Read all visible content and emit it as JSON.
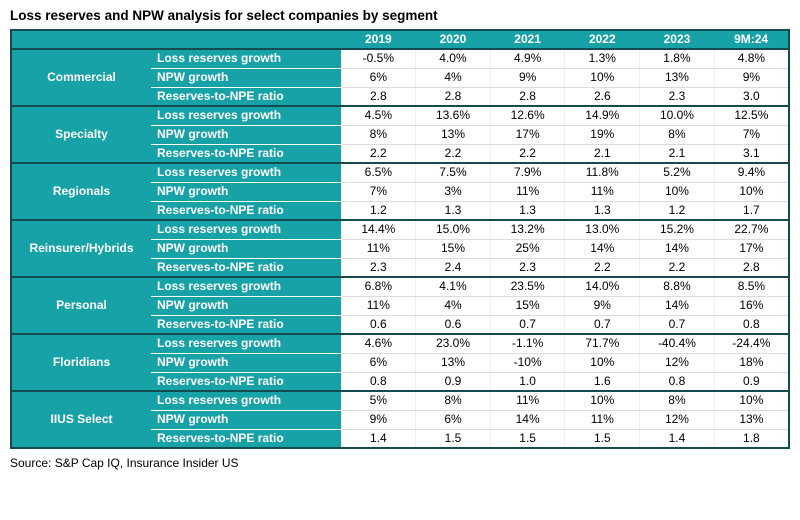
{
  "page": {
    "title": "Loss reserves and NPW analysis for select companies by segment",
    "source": "Source: S&P Cap IQ, Insurance Insider US"
  },
  "colors": {
    "teal": "#17a2a7",
    "dark_border": "#134b50",
    "header_text": "#ffffff",
    "row_line": "#dcdcdc"
  },
  "chart_data": {
    "type": "table",
    "title": "Loss reserves and NPW analysis for select companies by segment",
    "columns": [
      "2019",
      "2020",
      "2021",
      "2022",
      "2023",
      "9M:24"
    ],
    "metrics": [
      "Loss reserves growth",
      "NPW growth",
      "Reserves-to-NPE ratio"
    ],
    "segments": [
      {
        "name": "Commercial",
        "rows": [
          [
            "-0.5%",
            "4.0%",
            "4.9%",
            "1.3%",
            "1.8%",
            "4.8%"
          ],
          [
            "6%",
            "4%",
            "9%",
            "10%",
            "13%",
            "9%"
          ],
          [
            "2.8",
            "2.8",
            "2.8",
            "2.6",
            "2.3",
            "3.0"
          ]
        ]
      },
      {
        "name": "Specialty",
        "rows": [
          [
            "4.5%",
            "13.6%",
            "12.6%",
            "14.9%",
            "10.0%",
            "12.5%"
          ],
          [
            "8%",
            "13%",
            "17%",
            "19%",
            "8%",
            "7%"
          ],
          [
            "2.2",
            "2.2",
            "2.2",
            "2.1",
            "2.1",
            "3.1"
          ]
        ]
      },
      {
        "name": "Regionals",
        "rows": [
          [
            "6.5%",
            "7.5%",
            "7.9%",
            "11.8%",
            "5.2%",
            "9.4%"
          ],
          [
            "7%",
            "3%",
            "11%",
            "11%",
            "10%",
            "10%"
          ],
          [
            "1.2",
            "1.3",
            "1.3",
            "1.3",
            "1.2",
            "1.7"
          ]
        ]
      },
      {
        "name": "Reinsurer/Hybrids",
        "rows": [
          [
            "14.4%",
            "15.0%",
            "13.2%",
            "13.0%",
            "15.2%",
            "22.7%"
          ],
          [
            "11%",
            "15%",
            "25%",
            "14%",
            "14%",
            "17%"
          ],
          [
            "2.3",
            "2.4",
            "2.3",
            "2.2",
            "2.2",
            "2.8"
          ]
        ]
      },
      {
        "name": "Personal",
        "rows": [
          [
            "6.8%",
            "4.1%",
            "23.5%",
            "14.0%",
            "8.8%",
            "8.5%"
          ],
          [
            "11%",
            "4%",
            "15%",
            "9%",
            "14%",
            "16%"
          ],
          [
            "0.6",
            "0.6",
            "0.7",
            "0.7",
            "0.7",
            "0.8"
          ]
        ]
      },
      {
        "name": "Floridians",
        "rows": [
          [
            "4.6%",
            "23.0%",
            "-1.1%",
            "71.7%",
            "-40.4%",
            "-24.4%"
          ],
          [
            "6%",
            "13%",
            "-10%",
            "10%",
            "12%",
            "18%"
          ],
          [
            "0.8",
            "0.9",
            "1.0",
            "1.6",
            "0.8",
            "0.9"
          ]
        ]
      },
      {
        "name": "IIUS Select",
        "rows": [
          [
            "5%",
            "8%",
            "11%",
            "10%",
            "8%",
            "10%"
          ],
          [
            "9%",
            "6%",
            "14%",
            "11%",
            "12%",
            "13%"
          ],
          [
            "1.4",
            "1.5",
            "1.5",
            "1.5",
            "1.4",
            "1.8"
          ]
        ]
      }
    ]
  }
}
